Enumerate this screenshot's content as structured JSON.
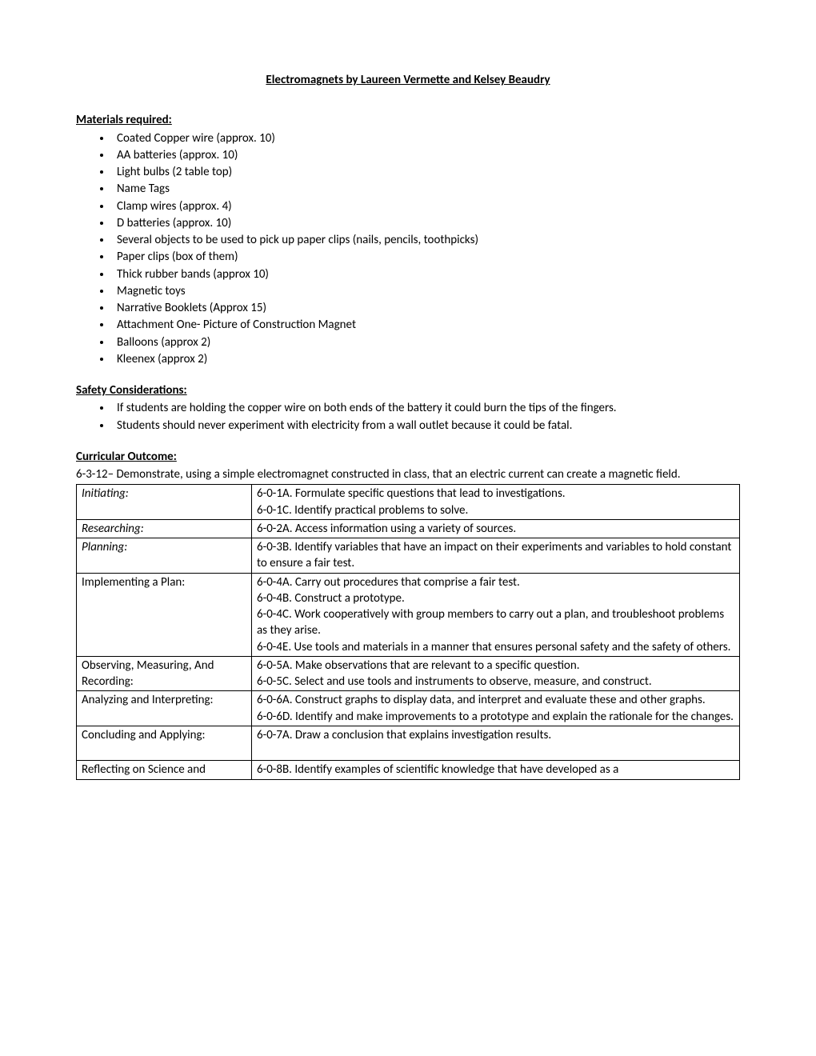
{
  "title": "Electromagnets by Laureen Vermette and Kelsey Beaudry",
  "materials": {
    "heading": "Materials required:",
    "items": [
      "Coated Copper wire (approx. 10)",
      "AA batteries (approx. 10)",
      "Light bulbs (2 table top)",
      "Name Tags",
      "Clamp wires (approx. 4)",
      "D batteries (approx. 10)",
      "Several objects to be used to pick up paper clips (nails, pencils, toothpicks)",
      "Paper clips (box of them)",
      "Thick rubber bands (approx 10)",
      "Magnetic toys",
      "Narrative Booklets (Approx 15)",
      "Attachment One- Picture of Construction Magnet",
      "Balloons (approx 2)",
      "Kleenex (approx 2)"
    ]
  },
  "safety": {
    "heading": "Safety Considerations:",
    "items": [
      "If students are holding the copper wire on both ends of the battery it could burn the tips of the fingers.",
      "Students should never experiment with electricity from a wall outlet because it could be fatal."
    ]
  },
  "outcome": {
    "heading": "Curricular Outcome:",
    "text": "6-3-12– Demonstrate, using a simple electromagnet constructed in class, that an electric current can create a magnetic field.",
    "rows": [
      {
        "label": "Initiating:",
        "italic": true,
        "lines": [
          "6-0-1A. Formulate specific questions that lead to investigations.",
          "6-0-1C. Identify practical problems to solve."
        ]
      },
      {
        "label": "Researching:",
        "italic": true,
        "lines": [
          "6-0-2A. Access information using a variety of sources."
        ]
      },
      {
        "label": "Planning:",
        "italic": true,
        "lines": [
          "6-0-3B. Identify variables that have an impact on their experiments and variables to hold constant to ensure a fair test."
        ]
      },
      {
        "label": "Implementing a Plan:",
        "italic": false,
        "lines": [
          "6-0-4A. Carry out procedures that comprise a fair test.",
          "6-0-4B. Construct a prototype.",
          "6-0-4C. Work cooperatively with group members to carry out a plan, and troubleshoot problems as they arise.",
          "6-0-4E. Use tools and materials in a manner that ensures personal safety and the safety of others."
        ]
      },
      {
        "label": "Observing, Measuring, And Recording:",
        "italic": false,
        "lines": [
          "6-0-5A. Make observations that are relevant to a specific question.",
          "6-0-5C. Select and use tools and instruments to observe, measure, and construct."
        ]
      },
      {
        "label": "Analyzing and Interpreting:",
        "italic": false,
        "lines": [
          "6-0-6A. Construct graphs to display data, and interpret and evaluate these and other graphs.",
          "6-0-6D. Identify and make improvements to a prototype and explain the rationale for the changes."
        ]
      },
      {
        "label": "Concluding and Applying:",
        "italic": false,
        "lines": [
          "6-0-7A. Draw a conclusion that explains investigation results.",
          " "
        ]
      },
      {
        "label": "Reflecting on Science and",
        "italic": false,
        "lines": [
          "6-0-8B. Identify examples of scientific knowledge that have developed as a"
        ]
      }
    ]
  }
}
